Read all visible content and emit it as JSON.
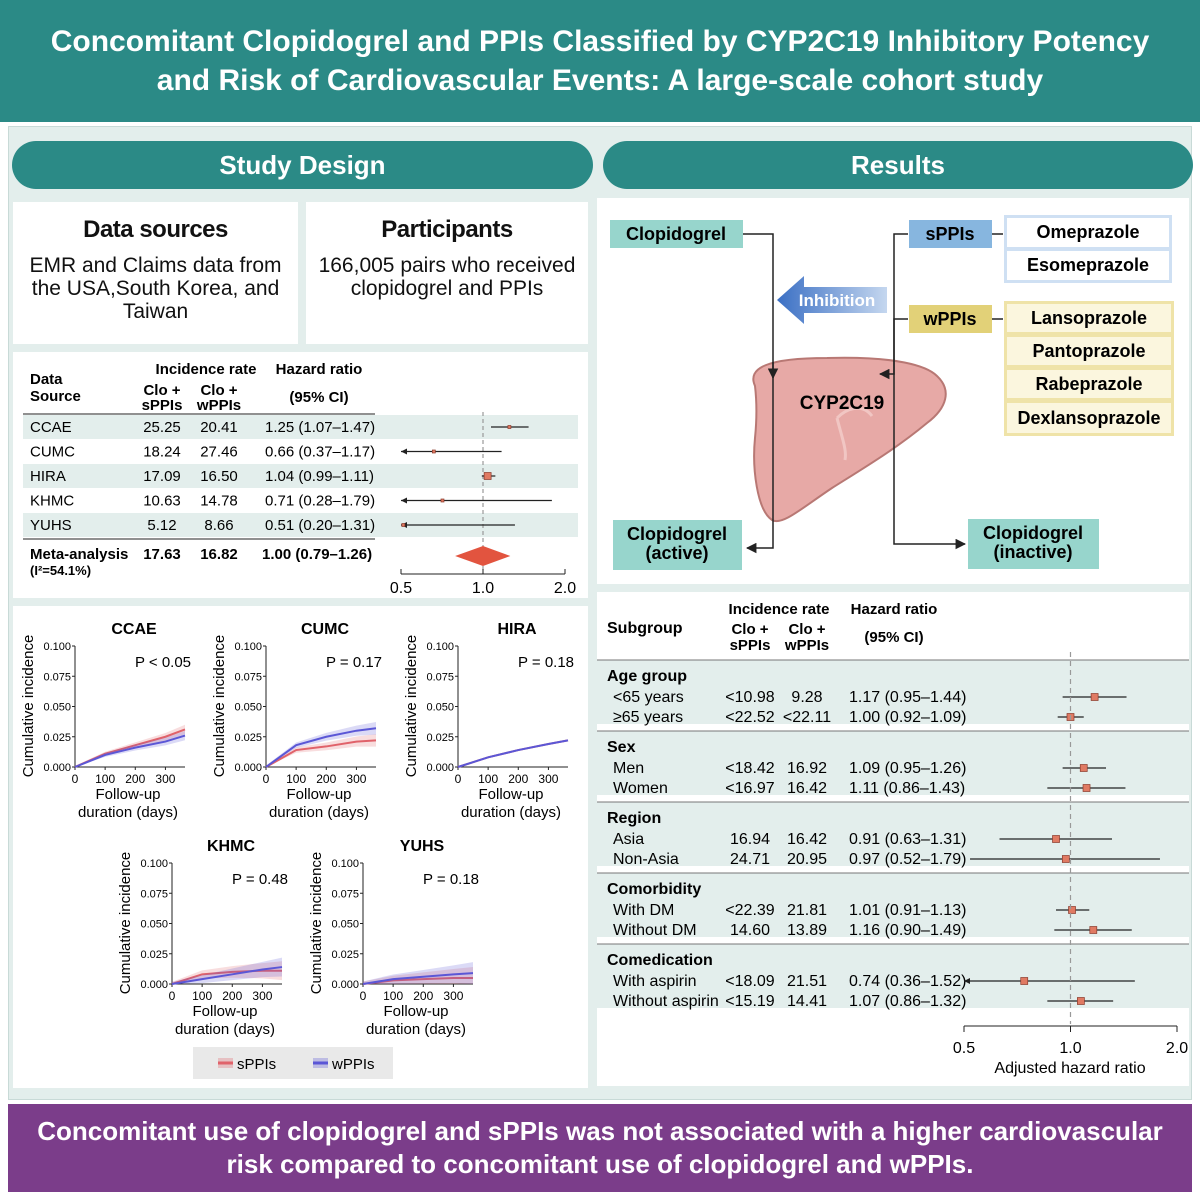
{
  "title": "Concomitant Clopidogrel and PPIs Classified by CYP2C19 Inhibitory Potency and Risk of Cardiovascular Events: A large-scale cohort study",
  "study_design": {
    "heading": "Study Design",
    "data_sources": {
      "title": "Data sources",
      "body": "EMR and Claims data from the USA,South Korea, and Taiwan"
    },
    "participants": {
      "title": "Participants",
      "body": "166,005 pairs who received clopidogrel and PPIs"
    }
  },
  "results": {
    "heading": "Results"
  },
  "mechanism": {
    "clopidogrel": "Clopidogrel",
    "inhibition": "Inhibition",
    "cyp": "CYP2C19",
    "active": [
      "Clopidogrel",
      "(active)"
    ],
    "inactive": [
      "Clopidogrel",
      "(inactive)"
    ],
    "sppi_label": "sPPIs",
    "wppi_label": "wPPIs",
    "sppis": [
      "Omeprazole",
      "Esomeprazole"
    ],
    "wppis": [
      "Lansoprazole",
      "Pantoprazole",
      "Rabeprazole",
      "Dexlansoprazole"
    ]
  },
  "forest_top": {
    "headers": {
      "source_l1": "Data",
      "source_l2": "Source",
      "incidence": "Incidence rate",
      "col_s": [
        "Clo +",
        "sPPIs"
      ],
      "col_w": [
        "Clo +",
        "wPPIs"
      ],
      "hr": "Hazard ratio",
      "ci": "(95% CI)"
    },
    "rows": [
      {
        "source": "CCAE",
        "s": "25.25",
        "w": "20.41",
        "hr": "1.25 (1.07–1.47)"
      },
      {
        "source": "CUMC",
        "s": "18.24",
        "w": "27.46",
        "hr": "0.66 (0.37–1.17)"
      },
      {
        "source": "HIRA",
        "s": "17.09",
        "w": "16.50",
        "hr": "1.04 (0.99–1.11)"
      },
      {
        "source": "KHMC",
        "s": "10.63",
        "w": "14.78",
        "hr": "0.71 (0.28–1.79)"
      },
      {
        "source": "YUHS",
        "s": "5.12",
        "w": "8.66",
        "hr": "0.51 (0.20–1.31)"
      }
    ],
    "meta": {
      "source_l1": "Meta-analysis",
      "source_l2": "(I²=54.1%)",
      "s": "17.63",
      "w": "16.82",
      "hr": "1.00 (0.79–1.26)"
    },
    "axis_ticks": [
      "0.5",
      "1.0",
      "2.0"
    ]
  },
  "km": {
    "ylabel": "Cumulative incidence",
    "xlabel": [
      "Follow-up",
      "duration (days)"
    ],
    "yticks": [
      "0.000",
      "0.025",
      "0.050",
      "0.075",
      "0.100"
    ],
    "xticks": [
      "0",
      "100",
      "200",
      "300"
    ],
    "legend": [
      "sPPIs",
      "wPPIs"
    ]
  },
  "subgroup": {
    "headers": {
      "subgroup": "Subgroup",
      "incidence": "Incidence rate",
      "col_s": [
        "Clo +",
        "sPPIs"
      ],
      "col_w": [
        "Clo +",
        "wPPIs"
      ],
      "hr": "Hazard ratio",
      "ci": "(95% CI)"
    },
    "groups": [
      {
        "name": "Age group",
        "rows": [
          {
            "label": "<65 years",
            "s": "<10.98",
            "w": "9.28",
            "hr": "1.17 (0.95–1.44)"
          },
          {
            "label": "≥65 years",
            "s": "<22.52",
            "w": "<22.11",
            "hr": "1.00 (0.92–1.09)"
          }
        ]
      },
      {
        "name": "Sex",
        "rows": [
          {
            "label": "Men",
            "s": "<18.42",
            "w": "16.92",
            "hr": "1.09 (0.95–1.26)"
          },
          {
            "label": "Women",
            "s": "<16.97",
            "w": "16.42",
            "hr": "1.11 (0.86–1.43)"
          }
        ]
      },
      {
        "name": "Region",
        "rows": [
          {
            "label": "Asia",
            "s": "16.94",
            "w": "16.42",
            "hr": "0.91 (0.63–1.31)"
          },
          {
            "label": "Non-Asia",
            "s": "24.71",
            "w": "20.95",
            "hr": "0.97 (0.52–1.79)"
          }
        ]
      },
      {
        "name": "Comorbidity",
        "rows": [
          {
            "label": "With DM",
            "s": "<22.39",
            "w": "21.81",
            "hr": "1.01 (0.91–1.13)"
          },
          {
            "label": "Without DM",
            "s": "14.60",
            "w": "13.89",
            "hr": "1.16 (0.90–1.49)"
          }
        ]
      },
      {
        "name": "Comedication",
        "rows": [
          {
            "label": "With aspirin",
            "s": "<18.09",
            "w": "21.51",
            "hr": "0.74 (0.36–1.52)"
          },
          {
            "label": "Without aspirin",
            "s": "<15.19",
            "w": "14.41",
            "hr": "1.07 (0.86–1.32)"
          }
        ]
      }
    ],
    "axis_ticks": [
      "0.5",
      "1.0",
      "2.0"
    ],
    "axis_label": "Adjusted hazard ratio"
  },
  "chart_data": [
    {
      "type": "forest",
      "name": "Data source hazard ratios",
      "categories": [
        "CCAE",
        "CUMC",
        "HIRA",
        "KHMC",
        "YUHS",
        "Meta-analysis"
      ],
      "hr": [
        1.25,
        0.66,
        1.04,
        0.71,
        0.51,
        1.0
      ],
      "lower": [
        1.07,
        0.37,
        0.99,
        0.28,
        0.2,
        0.79
      ],
      "upper": [
        1.47,
        1.17,
        1.11,
        1.79,
        1.31,
        1.26
      ],
      "xscale": "log",
      "xlim": [
        0.5,
        2.0
      ]
    },
    {
      "type": "forest",
      "name": "Subgroup adjusted hazard ratios",
      "categories": [
        "<65 years",
        "≥65 years",
        "Men",
        "Women",
        "Asia",
        "Non-Asia",
        "With DM",
        "Without DM",
        "With aspirin",
        "Without aspirin"
      ],
      "hr": [
        1.17,
        1.0,
        1.09,
        1.11,
        0.91,
        0.97,
        1.01,
        1.16,
        0.74,
        1.07
      ],
      "lower": [
        0.95,
        0.92,
        0.95,
        0.86,
        0.63,
        0.52,
        0.91,
        0.9,
        0.36,
        0.86
      ],
      "upper": [
        1.44,
        1.09,
        1.26,
        1.43,
        1.31,
        1.79,
        1.13,
        1.49,
        1.52,
        1.32
      ],
      "xscale": "log",
      "xlim": [
        0.5,
        2.0
      ],
      "xlabel": "Adjusted hazard ratio"
    },
    {
      "type": "line",
      "title": "CCAE",
      "annotation": "P < 0.05",
      "xlabel": "Follow-up duration (days)",
      "ylabel": "Cumulative incidence",
      "ylim": [
        0,
        0.1
      ],
      "xlim": [
        0,
        365
      ],
      "series": [
        {
          "name": "sPPIs",
          "x": [
            0,
            100,
            200,
            300,
            365
          ],
          "y": [
            0,
            0.011,
            0.018,
            0.025,
            0.031
          ]
        },
        {
          "name": "wPPIs",
          "x": [
            0,
            100,
            200,
            300,
            365
          ],
          "y": [
            0,
            0.01,
            0.016,
            0.021,
            0.026
          ]
        }
      ]
    },
    {
      "type": "line",
      "title": "CUMC",
      "annotation": "P = 0.17",
      "xlabel": "Follow-up duration (days)",
      "ylabel": "Cumulative incidence",
      "ylim": [
        0,
        0.1
      ],
      "xlim": [
        0,
        365
      ],
      "series": [
        {
          "name": "sPPIs",
          "x": [
            0,
            100,
            200,
            300,
            365
          ],
          "y": [
            0,
            0.014,
            0.017,
            0.021,
            0.022
          ]
        },
        {
          "name": "wPPIs",
          "x": [
            0,
            100,
            200,
            300,
            365
          ],
          "y": [
            0,
            0.018,
            0.025,
            0.03,
            0.032
          ]
        }
      ]
    },
    {
      "type": "line",
      "title": "HIRA",
      "annotation": "P = 0.18",
      "xlabel": "Follow-up duration (days)",
      "ylabel": "Cumulative incidence",
      "ylim": [
        0,
        0.1
      ],
      "xlim": [
        0,
        365
      ],
      "series": [
        {
          "name": "sPPIs",
          "x": [
            0,
            100,
            200,
            300,
            365
          ],
          "y": [
            0,
            0.008,
            0.014,
            0.019,
            0.022
          ]
        },
        {
          "name": "wPPIs",
          "x": [
            0,
            100,
            200,
            300,
            365
          ],
          "y": [
            0,
            0.008,
            0.014,
            0.019,
            0.022
          ]
        }
      ]
    },
    {
      "type": "line",
      "title": "KHMC",
      "annotation": "P = 0.48",
      "xlabel": "Follow-up duration (days)",
      "ylabel": "Cumulative incidence",
      "ylim": [
        0,
        0.1
      ],
      "xlim": [
        0,
        365
      ],
      "series": [
        {
          "name": "sPPIs",
          "x": [
            0,
            100,
            200,
            300,
            365
          ],
          "y": [
            0,
            0.008,
            0.01,
            0.011,
            0.011
          ]
        },
        {
          "name": "wPPIs",
          "x": [
            0,
            100,
            200,
            300,
            365
          ],
          "y": [
            0,
            0.004,
            0.008,
            0.012,
            0.014
          ]
        }
      ]
    },
    {
      "type": "line",
      "title": "YUHS",
      "annotation": "P = 0.18",
      "xlabel": "Follow-up duration (days)",
      "ylabel": "Cumulative incidence",
      "ylim": [
        0,
        0.1
      ],
      "xlim": [
        0,
        365
      ],
      "series": [
        {
          "name": "sPPIs",
          "x": [
            0,
            100,
            200,
            300,
            365
          ],
          "y": [
            0,
            0.003,
            0.004,
            0.005,
            0.005
          ]
        },
        {
          "name": "wPPIs",
          "x": [
            0,
            100,
            200,
            300,
            365
          ],
          "y": [
            0,
            0.004,
            0.006,
            0.008,
            0.009
          ]
        }
      ]
    }
  ],
  "conclusion": "Concomitant use of clopidogrel and sPPIs was not associated with a higher cardiovascular risk compared to concomitant use of clopidogrel and wPPIs.",
  "colors": {
    "teal": "#2b8a86",
    "panel": "#e3eeec",
    "purple": "#7b3d8a",
    "sppi_red": "#e0626a",
    "wppi_blue": "#5b57d6",
    "point": "#e07a63"
  }
}
